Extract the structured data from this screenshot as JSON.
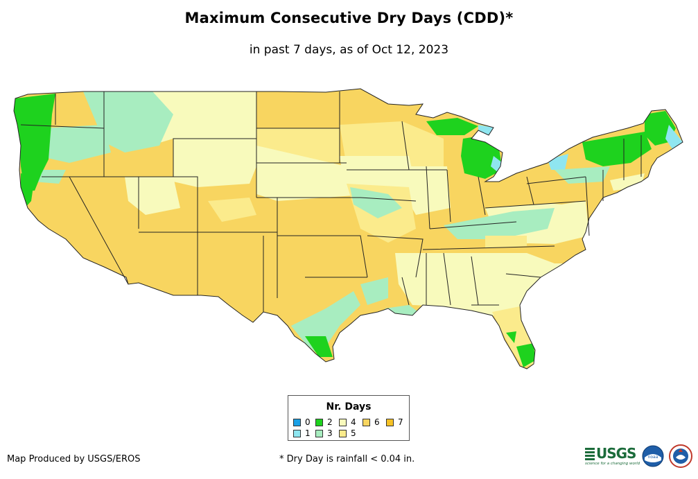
{
  "title": "Maximum Consecutive Dry Days (CDD)*",
  "subtitle": "in past 7 days, as of Oct 12, 2023",
  "legend": {
    "title": "Nr. Days",
    "items": [
      {
        "label": "0",
        "color": "#1aa0e6"
      },
      {
        "label": "1",
        "color": "#8fe6f0"
      },
      {
        "label": "2",
        "color": "#1ed21e"
      },
      {
        "label": "3",
        "color": "#a8edc0"
      },
      {
        "label": "4",
        "color": "#f8fabc"
      },
      {
        "label": "5",
        "color": "#fbeb8c"
      },
      {
        "label": "6",
        "color": "#f8d560"
      },
      {
        "label": "7",
        "color": "#f6c226"
      }
    ]
  },
  "footer": {
    "credit": "Map Produced by USGS/EROS",
    "note": "* Dry Day is rainfall < 0.04 in."
  },
  "logos": {
    "usgs": "USGS",
    "usgs_tagline": "science for a changing world",
    "noaa": "noaa"
  }
}
